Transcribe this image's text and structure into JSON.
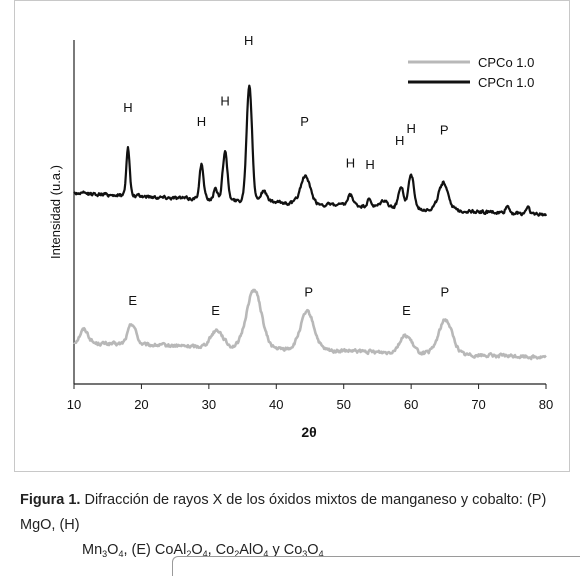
{
  "chart_data": {
    "type": "line",
    "title": "",
    "xlabel": "2θ",
    "ylabel": "Intensidad (u.a.)",
    "xlim": [
      10,
      80
    ],
    "x_ticks": [
      10,
      20,
      30,
      40,
      50,
      60,
      70,
      80
    ],
    "y_ticks": [],
    "grid": false,
    "legend_position": "top-right",
    "series": [
      {
        "name": "CPCo 1.0",
        "color": "#b8b8b8",
        "baseline": 0.12,
        "noise": 0.008,
        "slope": -0.0006,
        "peaks": [
          {
            "x": 11.5,
            "h": 0.04,
            "w": 0.6
          },
          {
            "x": 18.6,
            "h": 0.06,
            "w": 0.6
          },
          {
            "x": 31.2,
            "h": 0.05,
            "w": 0.9
          },
          {
            "x": 36.7,
            "h": 0.17,
            "w": 1.1
          },
          {
            "x": 44.6,
            "h": 0.11,
            "w": 1.0
          },
          {
            "x": 59.2,
            "h": 0.05,
            "w": 0.9
          },
          {
            "x": 65.1,
            "h": 0.1,
            "w": 1.0
          }
        ]
      },
      {
        "name": "CPCn 1.0",
        "color": "#111111",
        "baseline": 0.555,
        "noise": 0.008,
        "slope": -0.0009,
        "peaks": [
          {
            "x": 18.0,
            "h": 0.14,
            "w": 0.25
          },
          {
            "x": 28.9,
            "h": 0.1,
            "w": 0.3
          },
          {
            "x": 31.0,
            "h": 0.03,
            "w": 0.3
          },
          {
            "x": 32.4,
            "h": 0.14,
            "w": 0.35
          },
          {
            "x": 36.0,
            "h": 0.34,
            "w": 0.4
          },
          {
            "x": 38.1,
            "h": 0.03,
            "w": 0.5
          },
          {
            "x": 44.3,
            "h": 0.08,
            "w": 0.7
          },
          {
            "x": 51.0,
            "h": 0.03,
            "w": 0.4
          },
          {
            "x": 53.8,
            "h": 0.02,
            "w": 0.3
          },
          {
            "x": 56.0,
            "h": 0.02,
            "w": 0.5
          },
          {
            "x": 58.5,
            "h": 0.06,
            "w": 0.4
          },
          {
            "x": 60.0,
            "h": 0.1,
            "w": 0.4
          },
          {
            "x": 64.8,
            "h": 0.08,
            "w": 0.7
          },
          {
            "x": 74.3,
            "h": 0.02,
            "w": 0.3
          },
          {
            "x": 77.3,
            "h": 0.02,
            "w": 0.3
          }
        ]
      }
    ],
    "annotations": [
      {
        "text": "H",
        "x": 18.0,
        "y": 0.79
      },
      {
        "text": "H",
        "x": 28.9,
        "y": 0.75
      },
      {
        "text": "H",
        "x": 32.4,
        "y": 0.81
      },
      {
        "text": "H",
        "x": 35.9,
        "y": 0.985
      },
      {
        "text": "P",
        "x": 44.2,
        "y": 0.75
      },
      {
        "text": "H",
        "x": 51.0,
        "y": 0.63
      },
      {
        "text": "H",
        "x": 53.9,
        "y": 0.625
      },
      {
        "text": "H",
        "x": 58.3,
        "y": 0.695
      },
      {
        "text": "H",
        "x": 60.0,
        "y": 0.73
      },
      {
        "text": "P",
        "x": 64.9,
        "y": 0.725
      },
      {
        "text": "E",
        "x": 18.7,
        "y": 0.23
      },
      {
        "text": "E",
        "x": 31.0,
        "y": 0.2
      },
      {
        "text": "P",
        "x": 44.8,
        "y": 0.255
      },
      {
        "text": "E",
        "x": 59.3,
        "y": 0.2
      },
      {
        "text": "P",
        "x": 65.0,
        "y": 0.255
      }
    ]
  },
  "caption": {
    "label": "Figura 1.",
    "text_line1": "Difracción de rayos X de los óxidos mixtos de manganeso y cobalto: (P) MgO, (H)",
    "text_line2_parts": [
      "Mn",
      "3",
      "O",
      "4",
      ", (E) CoAl",
      "2",
      "O",
      "4",
      ", Co",
      "2",
      "AlO",
      "4",
      " y Co",
      "3",
      "O",
      "4"
    ]
  }
}
